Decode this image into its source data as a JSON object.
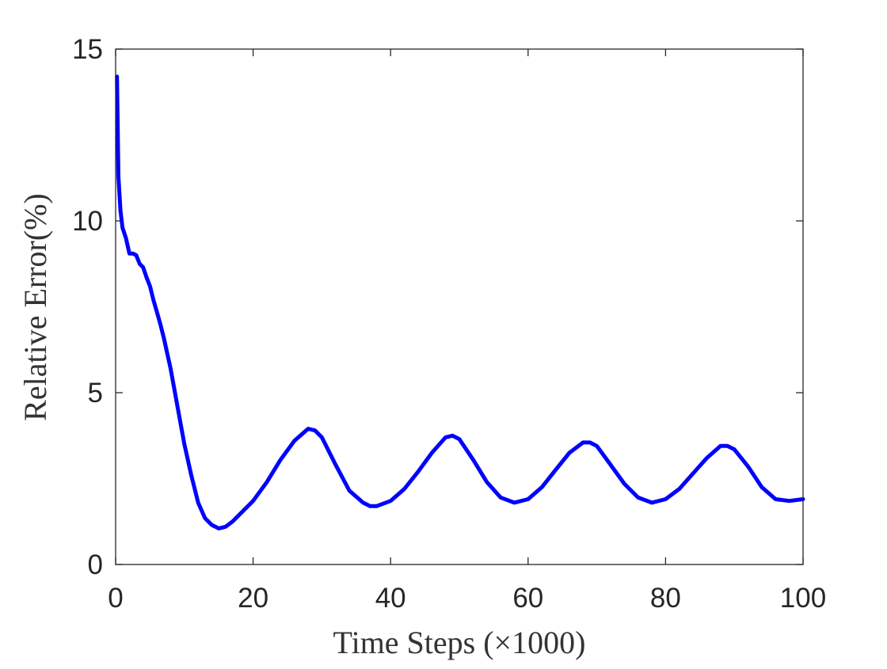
{
  "chart_data": {
    "type": "line",
    "xlabel": "Time Steps (×1000)",
    "ylabel": "Relative Error(%)",
    "xlim": [
      0,
      100
    ],
    "ylim": [
      0,
      15
    ],
    "xticks": [
      0,
      20,
      40,
      60,
      80,
      100
    ],
    "yticks": [
      0,
      5,
      10,
      15
    ],
    "xtick_labels": [
      "0",
      "20",
      "40",
      "60",
      "80",
      "100"
    ],
    "ytick_labels": [
      "0",
      "5",
      "10",
      "15"
    ],
    "grid": false,
    "box": true,
    "series": [
      {
        "color": "#0000ff",
        "x": [
          0.2,
          0.4,
          0.7,
          1.0,
          1.5,
          2.0,
          2.5,
          3.0,
          3.5,
          4.0,
          4.5,
          5.0,
          5.5,
          6.0,
          6.5,
          7.0,
          8.0,
          9.0,
          10.0,
          11.0,
          12.0,
          13.0,
          14.0,
          15.0,
          16.0,
          17.0,
          18.0,
          20.0,
          22.0,
          24.0,
          26.0,
          28.0,
          29.0,
          30.0,
          32.0,
          34.0,
          36.0,
          37.0,
          38.0,
          40.0,
          42.0,
          44.0,
          46.0,
          48.0,
          49.0,
          50.0,
          52.0,
          54.0,
          56.0,
          58.0,
          60.0,
          62.0,
          64.0,
          66.0,
          68.0,
          69.0,
          70.0,
          72.0,
          74.0,
          76.0,
          78.0,
          80.0,
          82.0,
          84.0,
          86.0,
          88.0,
          89.0,
          90.0,
          92.0,
          94.0,
          96.0,
          98.0,
          100.0
        ],
        "y": [
          14.2,
          11.3,
          10.3,
          9.8,
          9.5,
          9.05,
          9.05,
          9.0,
          8.75,
          8.65,
          8.35,
          8.1,
          7.7,
          7.35,
          7.0,
          6.6,
          5.7,
          4.6,
          3.5,
          2.6,
          1.8,
          1.35,
          1.15,
          1.05,
          1.1,
          1.25,
          1.45,
          1.85,
          2.4,
          3.05,
          3.6,
          3.95,
          3.9,
          3.7,
          2.9,
          2.15,
          1.8,
          1.7,
          1.7,
          1.85,
          2.2,
          2.7,
          3.25,
          3.7,
          3.75,
          3.65,
          3.05,
          2.4,
          1.95,
          1.8,
          1.9,
          2.25,
          2.75,
          3.25,
          3.55,
          3.55,
          3.45,
          2.9,
          2.35,
          1.95,
          1.8,
          1.9,
          2.2,
          2.65,
          3.1,
          3.45,
          3.45,
          3.35,
          2.85,
          2.25,
          1.9,
          1.85,
          1.9
        ]
      }
    ]
  }
}
